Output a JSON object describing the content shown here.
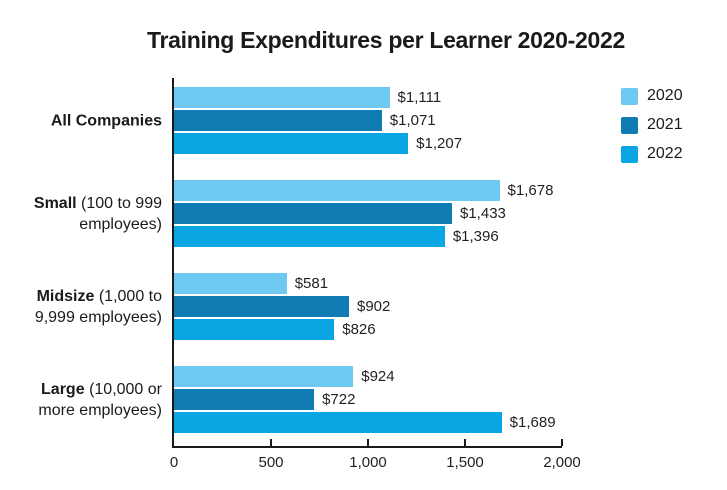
{
  "title": "Training Expenditures per Learner 2020-2022",
  "chart_data": {
    "type": "bar",
    "orientation": "horizontal",
    "title": "Training Expenditures per Learner 2020-2022",
    "categories": [
      {
        "name": "All Companies",
        "detail": ""
      },
      {
        "name": "Small",
        "detail": "(100 to 999 employees)"
      },
      {
        "name": "Midsize",
        "detail": "(1,000 to 9,999 employees)"
      },
      {
        "name": "Large",
        "detail": "(10,000 or more employees)"
      }
    ],
    "series": [
      {
        "name": "2020",
        "color": "#6EC9F1",
        "values": [
          1111,
          1678,
          581,
          924
        ],
        "labels": [
          "$1,111",
          "$1,678",
          "$581",
          "$924"
        ]
      },
      {
        "name": "2021",
        "color": "#0F7DB3",
        "values": [
          1071,
          1433,
          902,
          722
        ],
        "labels": [
          "$1,071",
          "$1,433",
          "$902",
          "$722"
        ]
      },
      {
        "name": "2022",
        "color": "#0AA6E3",
        "values": [
          1207,
          1396,
          826,
          1689
        ],
        "labels": [
          "$1,207",
          "$1,396",
          "$826",
          "$1,689"
        ]
      }
    ],
    "xlim": [
      0,
      2000
    ],
    "xticks": [
      {
        "value": 0,
        "label": "0"
      },
      {
        "value": 500,
        "label": "500"
      },
      {
        "value": 1000,
        "label": "1,000"
      },
      {
        "value": 1500,
        "label": "1,500"
      },
      {
        "value": 2000,
        "label": "2,000"
      }
    ],
    "grid": false,
    "value_labels": true,
    "legend_position": "top-right"
  },
  "colors": {
    "axis": "#1a1a1a",
    "text": "#231F20",
    "background": "#ffffff"
  }
}
